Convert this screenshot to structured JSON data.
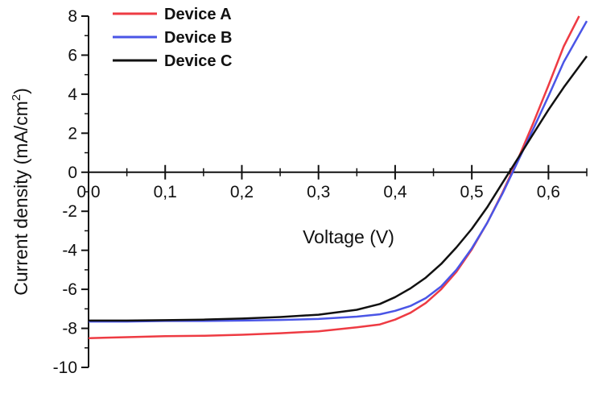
{
  "chart_data": {
    "type": "line",
    "xlabel": "Voltage (V)",
    "ylabel_main": "Current density (mA/cm",
    "ylabel_sup": "2",
    "ylabel_tail": ")",
    "xlim": [
      0.0,
      0.65
    ],
    "ylim": [
      -10,
      8
    ],
    "x_ticks": [
      {
        "v": 0.0,
        "label": "0,0"
      },
      {
        "v": 0.1,
        "label": "0,1"
      },
      {
        "v": 0.2,
        "label": "0,2"
      },
      {
        "v": 0.3,
        "label": "0,3"
      },
      {
        "v": 0.4,
        "label": "0,4"
      },
      {
        "v": 0.5,
        "label": "0,5"
      },
      {
        "v": 0.6,
        "label": "0,6"
      }
    ],
    "y_ticks": [
      {
        "v": -10,
        "label": "-10"
      },
      {
        "v": -8,
        "label": "-8"
      },
      {
        "v": -6,
        "label": "-6"
      },
      {
        "v": -4,
        "label": "-4"
      },
      {
        "v": -2,
        "label": "-2"
      },
      {
        "v": 0,
        "label": "0"
      },
      {
        "v": 2,
        "label": "2"
      },
      {
        "v": 4,
        "label": "4"
      },
      {
        "v": 6,
        "label": "6"
      },
      {
        "v": 8,
        "label": "8"
      }
    ],
    "legend_position": "top-left",
    "grid": false,
    "series": [
      {
        "name": "Device A",
        "color": "#ee3b43",
        "x": [
          0.0,
          0.05,
          0.1,
          0.15,
          0.2,
          0.25,
          0.3,
          0.35,
          0.38,
          0.4,
          0.42,
          0.44,
          0.46,
          0.48,
          0.5,
          0.52,
          0.54,
          0.56,
          0.58,
          0.6,
          0.62,
          0.64
        ],
        "y": [
          -8.5,
          -8.45,
          -8.4,
          -8.38,
          -8.33,
          -8.25,
          -8.15,
          -7.95,
          -7.8,
          -7.55,
          -7.2,
          -6.7,
          -6.0,
          -5.1,
          -3.95,
          -2.6,
          -1.05,
          0.65,
          2.5,
          4.45,
          6.45,
          8.0
        ]
      },
      {
        "name": "Device B",
        "color": "#4a55e6",
        "x": [
          0.0,
          0.05,
          0.1,
          0.15,
          0.2,
          0.25,
          0.3,
          0.35,
          0.38,
          0.4,
          0.42,
          0.44,
          0.46,
          0.48,
          0.5,
          0.52,
          0.54,
          0.56,
          0.58,
          0.6,
          0.62,
          0.65
        ],
        "y": [
          -7.65,
          -7.65,
          -7.62,
          -7.62,
          -7.6,
          -7.57,
          -7.52,
          -7.4,
          -7.28,
          -7.1,
          -6.85,
          -6.45,
          -5.85,
          -5.0,
          -3.9,
          -2.6,
          -1.1,
          0.55,
          2.2,
          3.9,
          5.65,
          7.75
        ]
      },
      {
        "name": "Device C",
        "color": "#111111",
        "x": [
          0.0,
          0.05,
          0.1,
          0.15,
          0.2,
          0.25,
          0.3,
          0.35,
          0.38,
          0.4,
          0.42,
          0.44,
          0.46,
          0.48,
          0.5,
          0.52,
          0.54,
          0.56,
          0.58,
          0.6,
          0.62,
          0.65
        ],
        "y": [
          -7.6,
          -7.6,
          -7.58,
          -7.55,
          -7.5,
          -7.42,
          -7.3,
          -7.05,
          -6.75,
          -6.4,
          -5.95,
          -5.4,
          -4.7,
          -3.85,
          -2.9,
          -1.8,
          -0.55,
          0.7,
          1.95,
          3.2,
          4.35,
          5.95
        ]
      }
    ]
  }
}
